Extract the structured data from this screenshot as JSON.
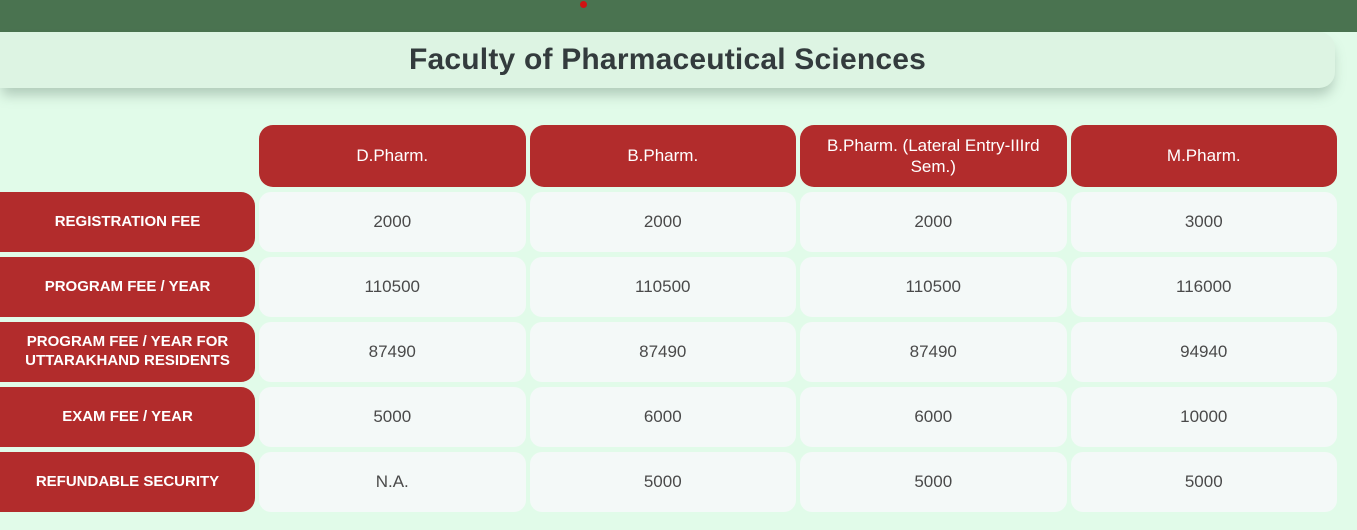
{
  "header": {
    "title": "Faculty of Pharmaceutical Sciences"
  },
  "colors": {
    "top_bar_green": "#4a7350",
    "banner_mint": "#ddf4e3",
    "page_background_mint": "#e1fbe9",
    "accent_red": "#b22c2c",
    "cell_background": "#f4f9f8",
    "cell_text": "#4a4a4a",
    "title_text": "#333b3d",
    "indicator_dot_red": "#cf1212"
  },
  "table": {
    "column_headers": [
      "D.Pharm.",
      "B.Pharm.",
      "B.Pharm. (Lateral Entry-IIIrd Sem.)",
      "M.Pharm."
    ],
    "rows": [
      {
        "label": "REGISTRATION FEE",
        "values": [
          "2000",
          "2000",
          "2000",
          "3000"
        ]
      },
      {
        "label": "PROGRAM FEE / YEAR",
        "values": [
          "110500",
          "110500",
          "110500",
          "116000"
        ]
      },
      {
        "label": "PROGRAM FEE / YEAR FOR UTTARAKHAND RESIDENTS",
        "values": [
          "87490",
          "87490",
          "87490",
          "94940"
        ]
      },
      {
        "label": "EXAM FEE / YEAR",
        "values": [
          "5000",
          "6000",
          "6000",
          "10000"
        ]
      },
      {
        "label": "REFUNDABLE SECURITY",
        "values": [
          "N.A.",
          "5000",
          "5000",
          "5000"
        ]
      }
    ]
  }
}
